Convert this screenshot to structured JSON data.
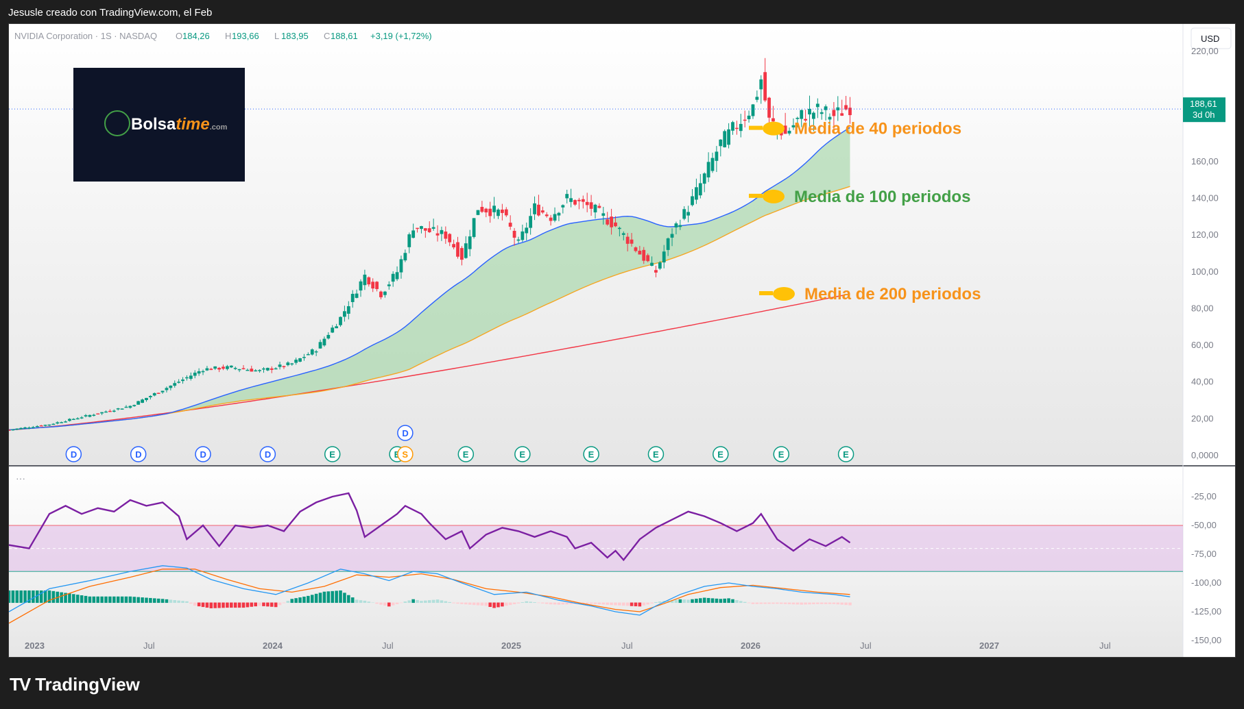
{
  "header": {
    "caption": "Jesusle creado con TradingView.com, el Feb",
    "symbol_name": "NVIDIA Corporation · 1S · NASDAQ",
    "ohlc": [
      {
        "label": "O",
        "value": "184,26"
      },
      {
        "label": "H",
        "value": "193,66"
      },
      {
        "label": "L",
        "value": "183,95"
      },
      {
        "label": "C",
        "value": "188,61"
      }
    ],
    "change": "+3,19 (+1,72%)",
    "currency": "USD"
  },
  "last_price": {
    "value": "188,61",
    "countdown": "3d 0h",
    "color": "#089981"
  },
  "logo": {
    "text_main": "Bolsa",
    "text_italic": "time",
    "text_suffix": ".com",
    "bg": "#0d1428"
  },
  "annotations": [
    {
      "text": "Media de 40 periodos",
      "color": "#f7931a",
      "target_price": 178
    },
    {
      "text": "Media de 100 periodos",
      "color": "#43a047",
      "target_price": 141
    },
    {
      "text": "Media de 200 periodos",
      "color": "#f7931a",
      "target_price": 88
    }
  ],
  "colors": {
    "up": "#089981",
    "down": "#f23645",
    "ma40": "#2962ff",
    "ma100": "#f5a623",
    "ma200": "#f23645",
    "fill": "#a5d6a7",
    "rsi": "#7b1fa2",
    "macd": "#2196f3",
    "signal": "#ff6d00"
  },
  "chart_data": {
    "type": "candlestick",
    "price_axis": {
      "min": 0,
      "max": 220,
      "ticks": [
        "220,00",
        "160,00",
        "140,00",
        "120,00",
        "100,00",
        "80,00",
        "60,00",
        "40,00",
        "20,00",
        "0,0000"
      ]
    },
    "indicator_axis": {
      "ticks": [
        "-25,00",
        "-50,00",
        "-75,00",
        "-100,00",
        "-125,00",
        "-150,00"
      ]
    },
    "time_axis": [
      "2023",
      "Jul",
      "2024",
      "Jul",
      "2025",
      "Jul",
      "2026",
      "Jul",
      "2027",
      "Jul"
    ],
    "price_path": [
      [
        0,
        14
      ],
      [
        10,
        17
      ],
      [
        20,
        22
      ],
      [
        30,
        27
      ],
      [
        40,
        38
      ],
      [
        48,
        47
      ],
      [
        55,
        48
      ],
      [
        62,
        46
      ],
      [
        70,
        50
      ],
      [
        76,
        58
      ],
      [
        82,
        75
      ],
      [
        88,
        98
      ],
      [
        92,
        88
      ],
      [
        96,
        100
      ],
      [
        100,
        125
      ],
      [
        104,
        122
      ],
      [
        108,
        120
      ],
      [
        112,
        108
      ],
      [
        116,
        135
      ],
      [
        122,
        132
      ],
      [
        126,
        115
      ],
      [
        130,
        135
      ],
      [
        134,
        130
      ],
      [
        138,
        140
      ],
      [
        144,
        135
      ],
      [
        150,
        125
      ],
      [
        156,
        110
      ],
      [
        160,
        100
      ],
      [
        164,
        122
      ],
      [
        168,
        135
      ],
      [
        172,
        152
      ],
      [
        176,
        170
      ],
      [
        180,
        180
      ],
      [
        184,
        190
      ],
      [
        186,
        205
      ],
      [
        188,
        182
      ],
      [
        192,
        175
      ],
      [
        196,
        185
      ],
      [
        200,
        188
      ],
      [
        204,
        185
      ],
      [
        208,
        190
      ]
    ],
    "events": [
      {
        "x": 16,
        "label": "D"
      },
      {
        "x": 32,
        "label": "D"
      },
      {
        "x": 48,
        "label": "D"
      },
      {
        "x": 64,
        "label": "D"
      },
      {
        "x": 80,
        "label": "E"
      },
      {
        "x": 96,
        "label": "E"
      },
      {
        "x": 98,
        "label": "S"
      },
      {
        "x": 98,
        "label": "D",
        "row": 2
      },
      {
        "x": 113,
        "label": "E"
      },
      {
        "x": 127,
        "label": "E"
      },
      {
        "x": 144,
        "label": "E"
      },
      {
        "x": 160,
        "label": "E"
      },
      {
        "x": 176,
        "label": "E"
      },
      {
        "x": 191,
        "label": "E"
      },
      {
        "x": 207,
        "label": "E"
      }
    ],
    "rsi_path": [
      [
        0,
        -67
      ],
      [
        5,
        -70
      ],
      [
        10,
        -40
      ],
      [
        14,
        -33
      ],
      [
        18,
        -40
      ],
      [
        22,
        -35
      ],
      [
        26,
        -38
      ],
      [
        30,
        -28
      ],
      [
        34,
        -33
      ],
      [
        38,
        -30
      ],
      [
        42,
        -42
      ],
      [
        44,
        -62
      ],
      [
        48,
        -50
      ],
      [
        52,
        -68
      ],
      [
        56,
        -50
      ],
      [
        60,
        -52
      ],
      [
        64,
        -50
      ],
      [
        68,
        -55
      ],
      [
        72,
        -38
      ],
      [
        76,
        -30
      ],
      [
        80,
        -25
      ],
      [
        84,
        -22
      ],
      [
        86,
        -37
      ],
      [
        88,
        -60
      ],
      [
        92,
        -50
      ],
      [
        96,
        -40
      ],
      [
        98,
        -33
      ],
      [
        102,
        -40
      ],
      [
        104,
        -48
      ],
      [
        108,
        -62
      ],
      [
        112,
        -55
      ],
      [
        114,
        -70
      ],
      [
        118,
        -58
      ],
      [
        122,
        -52
      ],
      [
        126,
        -55
      ],
      [
        130,
        -60
      ],
      [
        134,
        -55
      ],
      [
        138,
        -60
      ],
      [
        140,
        -70
      ],
      [
        144,
        -65
      ],
      [
        148,
        -78
      ],
      [
        150,
        -72
      ],
      [
        152,
        -80
      ],
      [
        156,
        -62
      ],
      [
        160,
        -52
      ],
      [
        164,
        -45
      ],
      [
        168,
        -38
      ],
      [
        172,
        -42
      ],
      [
        176,
        -48
      ],
      [
        180,
        -55
      ],
      [
        184,
        -48
      ],
      [
        186,
        -40
      ],
      [
        190,
        -62
      ],
      [
        194,
        -72
      ],
      [
        198,
        -62
      ],
      [
        202,
        -68
      ],
      [
        206,
        -60
      ],
      [
        208,
        -65
      ]
    ],
    "macd_path": [
      [
        0,
        -125
      ],
      [
        10,
        -105
      ],
      [
        20,
        -98
      ],
      [
        30,
        -90
      ],
      [
        38,
        -85
      ],
      [
        44,
        -87
      ],
      [
        50,
        -97
      ],
      [
        58,
        -105
      ],
      [
        66,
        -110
      ],
      [
        74,
        -100
      ],
      [
        82,
        -88
      ],
      [
        88,
        -92
      ],
      [
        94,
        -98
      ],
      [
        100,
        -90
      ],
      [
        106,
        -92
      ],
      [
        112,
        -100
      ],
      [
        120,
        -110
      ],
      [
        128,
        -108
      ],
      [
        136,
        -115
      ],
      [
        144,
        -120
      ],
      [
        150,
        -125
      ],
      [
        156,
        -128
      ],
      [
        160,
        -120
      ],
      [
        166,
        -110
      ],
      [
        172,
        -103
      ],
      [
        178,
        -100
      ],
      [
        184,
        -103
      ],
      [
        190,
        -105
      ],
      [
        196,
        -108
      ],
      [
        204,
        -110
      ],
      [
        208,
        -112
      ]
    ],
    "signal_path": [
      [
        0,
        -135
      ],
      [
        10,
        -115
      ],
      [
        20,
        -103
      ],
      [
        30,
        -95
      ],
      [
        38,
        -88
      ],
      [
        46,
        -88
      ],
      [
        54,
        -97
      ],
      [
        62,
        -105
      ],
      [
        70,
        -108
      ],
      [
        78,
        -103
      ],
      [
        86,
        -93
      ],
      [
        94,
        -95
      ],
      [
        102,
        -92
      ],
      [
        110,
        -97
      ],
      [
        118,
        -105
      ],
      [
        126,
        -108
      ],
      [
        134,
        -112
      ],
      [
        142,
        -118
      ],
      [
        150,
        -123
      ],
      [
        156,
        -125
      ],
      [
        162,
        -118
      ],
      [
        168,
        -110
      ],
      [
        176,
        -104
      ],
      [
        184,
        -102
      ],
      [
        192,
        -105
      ],
      [
        200,
        -108
      ],
      [
        208,
        -110
      ]
    ]
  }
}
